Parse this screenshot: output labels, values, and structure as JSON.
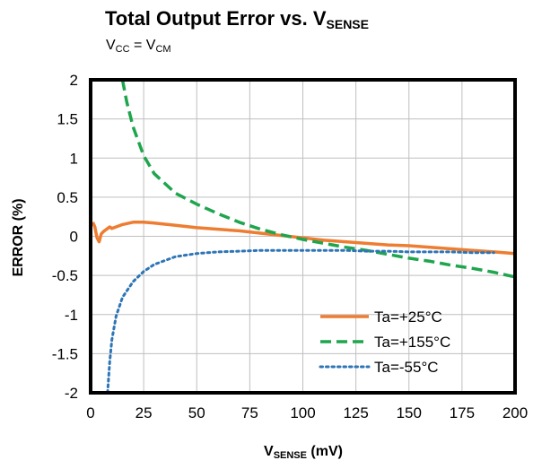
{
  "chart_data": {
    "type": "line",
    "title": {
      "prefix": "Total Output Error vs. V",
      "sub": "SENSE"
    },
    "subtitle": {
      "a": "V",
      "a_sub": "CC",
      "mid": " = V",
      "b_sub": "CM"
    },
    "xlabel": {
      "prefix": "V",
      "sub": "SENSE",
      "suffix": " (mV)"
    },
    "ylabel": "ERROR  (%)",
    "xlim": [
      0,
      200
    ],
    "ylim": [
      -2,
      2
    ],
    "x_ticks": [
      0,
      25,
      50,
      75,
      100,
      125,
      150,
      175,
      200
    ],
    "y_ticks": [
      2,
      1.5,
      1,
      0.5,
      0,
      -0.5,
      -1,
      -1.5,
      -2
    ],
    "grid": true,
    "legend_position": "bottom-right",
    "series": [
      {
        "name": "Ta=+25°C",
        "color": "#ED7D31",
        "style": "solid",
        "x": [
          1,
          2,
          3,
          4,
          5,
          6,
          7,
          8,
          9,
          10,
          12,
          15,
          20,
          25,
          30,
          40,
          50,
          60,
          70,
          80,
          90,
          100,
          110,
          120,
          130,
          140,
          150,
          160,
          170,
          180,
          190,
          200
        ],
        "y": [
          0.18,
          0.12,
          -0.02,
          -0.07,
          0.03,
          0.06,
          0.08,
          0.1,
          0.12,
          0.1,
          0.12,
          0.15,
          0.18,
          0.18,
          0.17,
          0.14,
          0.11,
          0.09,
          0.07,
          0.04,
          0.01,
          -0.02,
          -0.05,
          -0.07,
          -0.09,
          -0.11,
          -0.12,
          -0.14,
          -0.16,
          -0.18,
          -0.2,
          -0.22
        ]
      },
      {
        "name": "Ta=+155°C",
        "color": "#1FA54D",
        "style": "dashed",
        "x": [
          15,
          17,
          20,
          25,
          30,
          40,
          50,
          60,
          70,
          80,
          90,
          100,
          110,
          120,
          130,
          140,
          150,
          160,
          170,
          180,
          190,
          200
        ],
        "y": [
          2.0,
          1.72,
          1.4,
          1.03,
          0.8,
          0.55,
          0.41,
          0.29,
          0.18,
          0.09,
          0.02,
          -0.04,
          -0.09,
          -0.14,
          -0.18,
          -0.23,
          -0.28,
          -0.32,
          -0.37,
          -0.41,
          -0.46,
          -0.52
        ]
      },
      {
        "name": "Ta=-55°C",
        "color": "#2E75B6",
        "style": "dotted",
        "x": [
          8,
          9,
          10,
          12,
          15,
          20,
          25,
          30,
          40,
          50,
          60,
          70,
          80,
          90,
          100,
          110,
          120,
          130,
          140,
          150,
          160,
          170,
          180,
          190
        ],
        "y": [
          -2.0,
          -1.6,
          -1.32,
          -1.02,
          -0.78,
          -0.58,
          -0.45,
          -0.36,
          -0.26,
          -0.22,
          -0.2,
          -0.19,
          -0.18,
          -0.18,
          -0.18,
          -0.18,
          -0.18,
          -0.19,
          -0.19,
          -0.2,
          -0.2,
          -0.2,
          -0.21,
          -0.21
        ]
      }
    ]
  }
}
